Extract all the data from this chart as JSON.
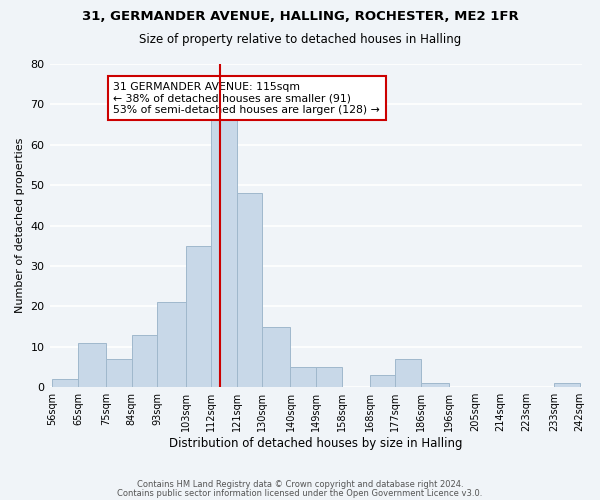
{
  "title_line1": "31, GERMANDER AVENUE, HALLING, ROCHESTER, ME2 1FR",
  "title_line2": "Size of property relative to detached houses in Halling",
  "xlabel": "Distribution of detached houses by size in Halling",
  "ylabel": "Number of detached properties",
  "bar_color": "#c8d8e8",
  "bar_edge_color": "#a0b8cc",
  "background_color": "#f0f4f8",
  "grid_color": "#ffffff",
  "bins": [
    56,
    65,
    75,
    84,
    93,
    103,
    112,
    121,
    130,
    140,
    149,
    158,
    168,
    177,
    186,
    196,
    205,
    214,
    223,
    233,
    242
  ],
  "bin_labels": [
    "56sqm",
    "65sqm",
    "75sqm",
    "84sqm",
    "93sqm",
    "103sqm",
    "112sqm",
    "121sqm",
    "130sqm",
    "140sqm",
    "149sqm",
    "158sqm",
    "168sqm",
    "177sqm",
    "186sqm",
    "196sqm",
    "205sqm",
    "214sqm",
    "223sqm",
    "233sqm",
    "242sqm"
  ],
  "counts": [
    2,
    11,
    7,
    13,
    21,
    35,
    67,
    48,
    15,
    5,
    5,
    0,
    3,
    7,
    1,
    0,
    0,
    0,
    0,
    1
  ],
  "property_line": 115,
  "property_line_color": "#cc0000",
  "annotation_text": "31 GERMANDER AVENUE: 115sqm\n← 38% of detached houses are smaller (91)\n53% of semi-detached houses are larger (128) →",
  "annotation_box_color": "#ffffff",
  "annotation_box_edge": "#cc0000",
  "ylim": [
    0,
    80
  ],
  "yticks": [
    0,
    10,
    20,
    30,
    40,
    50,
    60,
    70,
    80
  ],
  "footer_line1": "Contains HM Land Registry data © Crown copyright and database right 2024.",
  "footer_line2": "Contains public sector information licensed under the Open Government Licence v3.0."
}
